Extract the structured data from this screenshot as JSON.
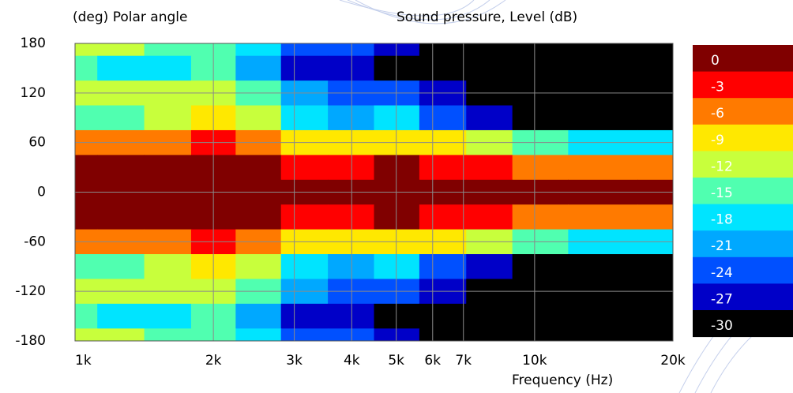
{
  "chart_data": {
    "type": "contour",
    "title": "Sound pressure, Level  (dB)",
    "y_label": "(deg)  Polar angle",
    "x_label": "Frequency  (Hz)",
    "x_scale": "log",
    "x": [
      1000,
      1250,
      1600,
      2000,
      2500,
      3150,
      4000,
      5000,
      6300,
      8000,
      10000,
      14000,
      20000
    ],
    "y": [
      180,
      150,
      120,
      90,
      60,
      30,
      0,
      -30,
      -60,
      -90,
      -120,
      -150,
      -180
    ],
    "z": [
      [
        -13,
        -14,
        -16,
        -15,
        -19,
        -24,
        -26,
        -28,
        -31,
        -33,
        -33,
        -33,
        -33
      ],
      [
        -17,
        -18,
        -18,
        -17,
        -21,
        -27,
        -29,
        -30,
        -32,
        -33,
        -33,
        -33,
        -33
      ],
      [
        -13,
        -14,
        -14,
        -14,
        -17,
        -23,
        -25,
        -26,
        -28,
        -31,
        -33,
        -33,
        -33
      ],
      [
        -15,
        -15,
        -13,
        -11,
        -14,
        -18,
        -21,
        -20,
        -24,
        -28,
        -31,
        -32,
        -32
      ],
      [
        -8,
        -8,
        -6,
        -4,
        -6,
        -10,
        -11,
        -9,
        -11,
        -13,
        -16,
        -20,
        -18
      ],
      [
        -2,
        -2,
        -1.5,
        -1,
        -2,
        -4,
        -3,
        -2.5,
        -3,
        -5,
        -6,
        -7,
        -8
      ],
      [
        -1,
        -1,
        -1,
        -1,
        -1,
        -1,
        -1,
        -1,
        -1,
        -1,
        -1,
        -1,
        -1
      ],
      [
        -2,
        -2,
        -1.5,
        -1,
        -2,
        -4,
        -3,
        -2.5,
        -3,
        -5,
        -6,
        -7,
        -8
      ],
      [
        -8,
        -8,
        -6,
        -4,
        -6,
        -10,
        -11,
        -9,
        -11,
        -13,
        -16,
        -20,
        -18
      ],
      [
        -15,
        -15,
        -13,
        -11,
        -14,
        -18,
        -21,
        -20,
        -24,
        -28,
        -31,
        -32,
        -32
      ],
      [
        -13,
        -14,
        -14,
        -14,
        -17,
        -23,
        -25,
        -26,
        -28,
        -31,
        -33,
        -33,
        -33
      ],
      [
        -17,
        -18,
        -18,
        -17,
        -21,
        -27,
        -29,
        -30,
        -32,
        -33,
        -33,
        -33,
        -33
      ],
      [
        -13,
        -14,
        -16,
        -15,
        -19,
        -24,
        -26,
        -28,
        -31,
        -33,
        -33,
        -33,
        -33
      ]
    ],
    "levels": [
      0,
      -3,
      -6,
      -9,
      -12,
      -15,
      -18,
      -21,
      -24,
      -27,
      -30
    ],
    "colors": [
      "#800000",
      "#ff0000",
      "#ff7a00",
      "#ffe800",
      "#c8ff3c",
      "#50ffb0",
      "#00e4ff",
      "#00a8ff",
      "#0050ff",
      "#0000c8",
      "#000000"
    ],
    "xlim": [
      1000,
      20000
    ],
    "ylim": [
      -180,
      180
    ],
    "xticks": [
      {
        "value": 1000,
        "label": "1k"
      },
      {
        "value": 2000,
        "label": "2k"
      },
      {
        "value": 3000,
        "label": "3k"
      },
      {
        "value": 4000,
        "label": "4k"
      },
      {
        "value": 5000,
        "label": "5k"
      },
      {
        "value": 6000,
        "label": "6k"
      },
      {
        "value": 7000,
        "label": "7k"
      },
      {
        "value": 10000,
        "label": "10k"
      },
      {
        "value": 20000,
        "label": "20k"
      }
    ],
    "yticks": [
      180,
      120,
      60,
      0,
      -60,
      -120,
      -180
    ],
    "grid": true
  }
}
